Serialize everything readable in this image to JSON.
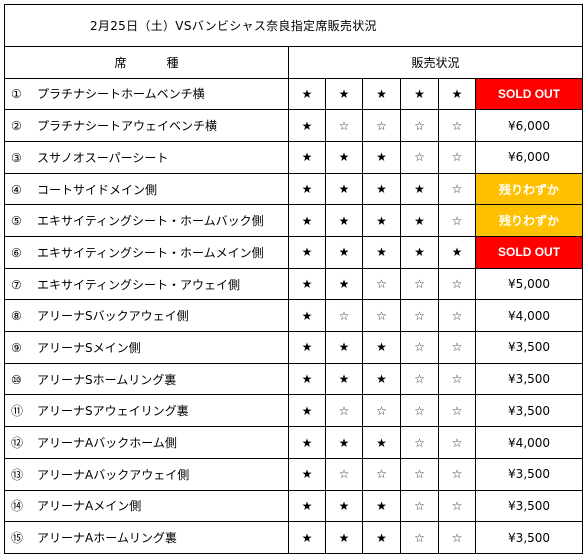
{
  "title": "2月25日（土）VSバンビシャス奈良指定席販売状況",
  "headers": {
    "seat": "席　種",
    "status": "販売状況"
  },
  "colors": {
    "soldout_bg": "#ff0000",
    "few_bg": "#ffc000",
    "text_on_status": "#ffffff"
  },
  "glyphs": {
    "filled": "★",
    "empty": "☆"
  },
  "rows": [
    {
      "num": "①",
      "name": "プラチナシートホームベンチ横",
      "stars": 5,
      "price": "SOLD OUT",
      "status": "soldout"
    },
    {
      "num": "②",
      "name": "プラチナシートアウェイベンチ横",
      "stars": 1,
      "price": "¥6,000",
      "status": "price"
    },
    {
      "num": "③",
      "name": "スサノオスーパーシート",
      "stars": 3,
      "price": "¥6,000",
      "status": "price"
    },
    {
      "num": "④",
      "name": "コートサイドメイン側",
      "stars": 4,
      "price": "残りわずか",
      "status": "few"
    },
    {
      "num": "⑤",
      "name": "エキサイティングシート・ホームバック側",
      "stars": 4,
      "price": "残りわずか",
      "status": "few"
    },
    {
      "num": "⑥",
      "name": "エキサイティングシート・ホームメイン側",
      "stars": 5,
      "price": "SOLD OUT",
      "status": "soldout"
    },
    {
      "num": "⑦",
      "name": "エキサイティングシート・アウェイ側",
      "stars": 2,
      "price": "¥5,000",
      "status": "price"
    },
    {
      "num": "⑧",
      "name": "アリーナSバックアウェイ側",
      "stars": 1,
      "price": "¥4,000",
      "status": "price"
    },
    {
      "num": "⑨",
      "name": "アリーナSメイン側",
      "stars": 3,
      "price": "¥3,500",
      "status": "price"
    },
    {
      "num": "⑩",
      "name": "アリーナSホームリング裏",
      "stars": 3,
      "price": "¥3,500",
      "status": "price"
    },
    {
      "num": "⑪",
      "name": "アリーナSアウェイリング裏",
      "stars": 1,
      "price": "¥3,500",
      "status": "price"
    },
    {
      "num": "⑫",
      "name": "アリーナAバックホーム側",
      "stars": 3,
      "price": "¥4,000",
      "status": "price"
    },
    {
      "num": "⑬",
      "name": "アリーナAバックアウェイ側",
      "stars": 1,
      "price": "¥3,500",
      "status": "price"
    },
    {
      "num": "⑭",
      "name": "アリーナAメイン側",
      "stars": 3,
      "price": "¥3,500",
      "status": "price"
    },
    {
      "num": "⑮",
      "name": "アリーナAホームリング裏",
      "stars": 3,
      "price": "¥3,500",
      "status": "price"
    }
  ]
}
